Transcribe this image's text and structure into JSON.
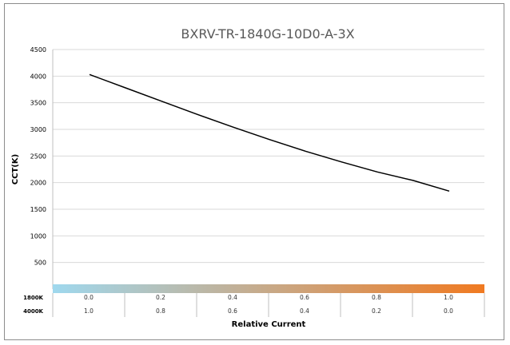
{
  "chart_data": {
    "type": "line",
    "title": "BXRV-TR-1840G-10D0-A-3X",
    "ylabel": "CCT(K)",
    "xlabel": "Relative Current",
    "ylim": [
      0,
      4500
    ],
    "xlim": [
      0,
      1
    ],
    "y_ticks": [
      500,
      1000,
      1500,
      2000,
      2500,
      3000,
      3500,
      4000,
      4500
    ],
    "grid": true,
    "series": [
      {
        "x": [
          0.0,
          0.1,
          0.2,
          0.3,
          0.4,
          0.5,
          0.6,
          0.7,
          0.8,
          0.9,
          1.0
        ],
        "y": [
          4030,
          3780,
          3530,
          3280,
          3040,
          2810,
          2590,
          2390,
          2200,
          2040,
          1840
        ],
        "color": "#000000"
      }
    ],
    "x_table": {
      "row_labels": [
        "1800K",
        "4000K"
      ],
      "rows": [
        [
          "0.0",
          "0.2",
          "0.4",
          "0.6",
          "0.8",
          "1.0"
        ],
        [
          "1.0",
          "0.8",
          "0.6",
          "0.4",
          "0.2",
          "0.0"
        ]
      ]
    },
    "gradient_colors": [
      "#9fd8ee",
      "#f07a21"
    ]
  }
}
